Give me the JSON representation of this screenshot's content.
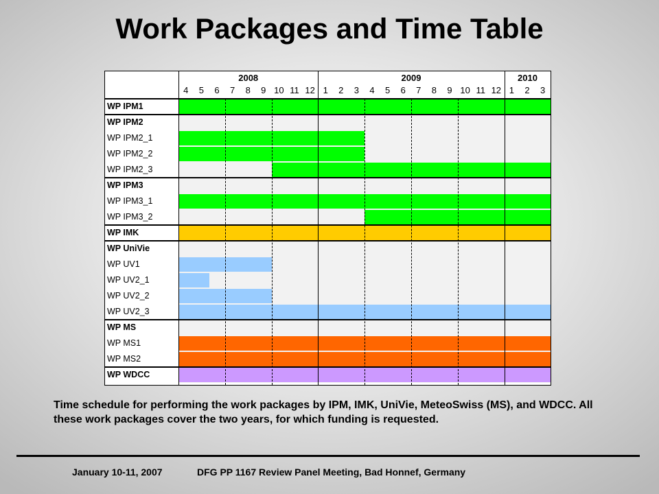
{
  "title": "Work Packages and Time Table",
  "timeline": {
    "years": [
      {
        "label": "2008",
        "start_month_index": 0,
        "span": 9
      },
      {
        "label": "2009",
        "start_month_index": 9,
        "span": 12
      },
      {
        "label": "2010",
        "start_month_index": 21,
        "span": 3
      }
    ],
    "months": [
      "4",
      "5",
      "6",
      "7",
      "8",
      "9",
      "10",
      "11",
      "12",
      "1",
      "2",
      "3",
      "4",
      "5",
      "6",
      "7",
      "8",
      "9",
      "10",
      "11",
      "12",
      "1",
      "2",
      "3"
    ]
  },
  "colors": {
    "green": "#00ff00",
    "orange_yellow": "#ffcc00",
    "light_blue": "#99ccff",
    "orange": "#ff6600",
    "lavender": "#cc99ff"
  },
  "rows": [
    {
      "label": "WP IPM1",
      "group": true,
      "bars": [
        {
          "color": "green",
          "start": 0,
          "end": 24
        }
      ]
    },
    {
      "label": "WP IPM2",
      "group": true,
      "bars": []
    },
    {
      "label": "WP IPM2_1",
      "group": false,
      "bars": [
        {
          "color": "green",
          "start": 0,
          "end": 12
        }
      ]
    },
    {
      "label": "WP IPM2_2",
      "group": false,
      "bars": [
        {
          "color": "green",
          "start": 0,
          "end": 12
        }
      ]
    },
    {
      "label": "WP IPM2_3",
      "group": false,
      "bars": [
        {
          "color": "green",
          "start": 6,
          "end": 24
        }
      ]
    },
    {
      "label": "WP IPM3",
      "group": true,
      "bars": []
    },
    {
      "label": "WP IPM3_1",
      "group": false,
      "bars": [
        {
          "color": "green",
          "start": 0,
          "end": 24
        }
      ]
    },
    {
      "label": "WP IPM3_2",
      "group": false,
      "bars": [
        {
          "color": "green",
          "start": 12,
          "end": 24
        }
      ]
    },
    {
      "label": "WP IMK",
      "group": true,
      "bars": [
        {
          "color": "orange_yellow",
          "start": 0,
          "end": 24
        }
      ]
    },
    {
      "label": "WP UniVie",
      "group": true,
      "bars": []
    },
    {
      "label": "WP UV1",
      "group": false,
      "bars": [
        {
          "color": "light_blue",
          "start": 0,
          "end": 6
        }
      ]
    },
    {
      "label": "WP UV2_1",
      "group": false,
      "bars": [
        {
          "color": "light_blue",
          "start": 0,
          "end": 2
        }
      ]
    },
    {
      "label": "WP UV2_2",
      "group": false,
      "bars": [
        {
          "color": "light_blue",
          "start": 0,
          "end": 6
        }
      ]
    },
    {
      "label": "WP UV2_3",
      "group": false,
      "bars": [
        {
          "color": "light_blue",
          "start": 0,
          "end": 24
        }
      ]
    },
    {
      "label": "WP MS",
      "group": true,
      "bars": []
    },
    {
      "label": "WP MS1",
      "group": false,
      "bars": [
        {
          "color": "orange",
          "start": 0,
          "end": 24
        }
      ]
    },
    {
      "label": "WP MS2",
      "group": false,
      "bars": [
        {
          "color": "orange",
          "start": 0,
          "end": 24
        }
      ]
    },
    {
      "label": "WP WDCC",
      "group": true,
      "bars": [
        {
          "color": "lavender",
          "start": 0,
          "end": 24
        }
      ]
    }
  ],
  "caption": "Time schedule for performing the work packages by IPM, IMK, UniVie, MeteoSwiss (MS), and WDCC. All these work packages cover the two years, for which funding is requested.",
  "footer": {
    "date": "January 10-11, 2007",
    "meeting": "DFG PP 1167 Review Panel Meeting, Bad Honnef, Germany"
  }
}
